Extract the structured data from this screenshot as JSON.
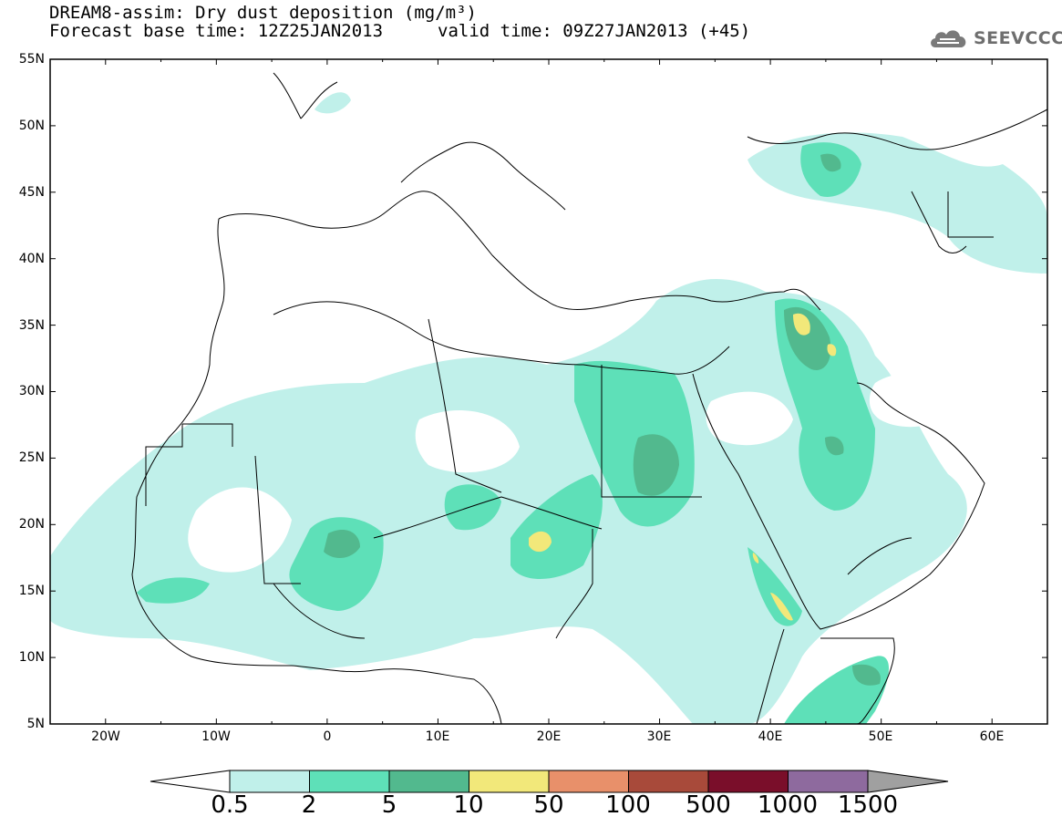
{
  "title": {
    "line1": "DREAM8-assim: Dry dust deposition (mg/m³)",
    "line2_left": "Forecast base time: 12Z25JAN2013",
    "line2_right": "valid time: 09Z27JAN2013 (+45)"
  },
  "logo": {
    "text": "SEEVCCC",
    "icon": "cloud-icon",
    "color": "#6e6e6e"
  },
  "map": {
    "lon_range": [
      -25,
      65
    ],
    "lat_range": [
      5,
      55
    ],
    "lat_labels": [
      "55N",
      "50N",
      "45N",
      "40N",
      "35N",
      "30N",
      "25N",
      "20N",
      "15N",
      "10N",
      "5N"
    ],
    "lon_labels": [
      "20W",
      "10W",
      "0",
      "10E",
      "20E",
      "30E",
      "40E",
      "50E",
      "60E"
    ]
  },
  "colorbar": {
    "labels": [
      "0.5",
      "2",
      "5",
      "10",
      "50",
      "100",
      "500",
      "1000",
      "1500"
    ],
    "colors": [
      "#c0f0ea",
      "#5ee0b8",
      "#52b98e",
      "#f2e87a",
      "#e8906a",
      "#a84a3a",
      "#7a0e2a",
      "#8e6a9e",
      "#a0a0a0"
    ]
  }
}
